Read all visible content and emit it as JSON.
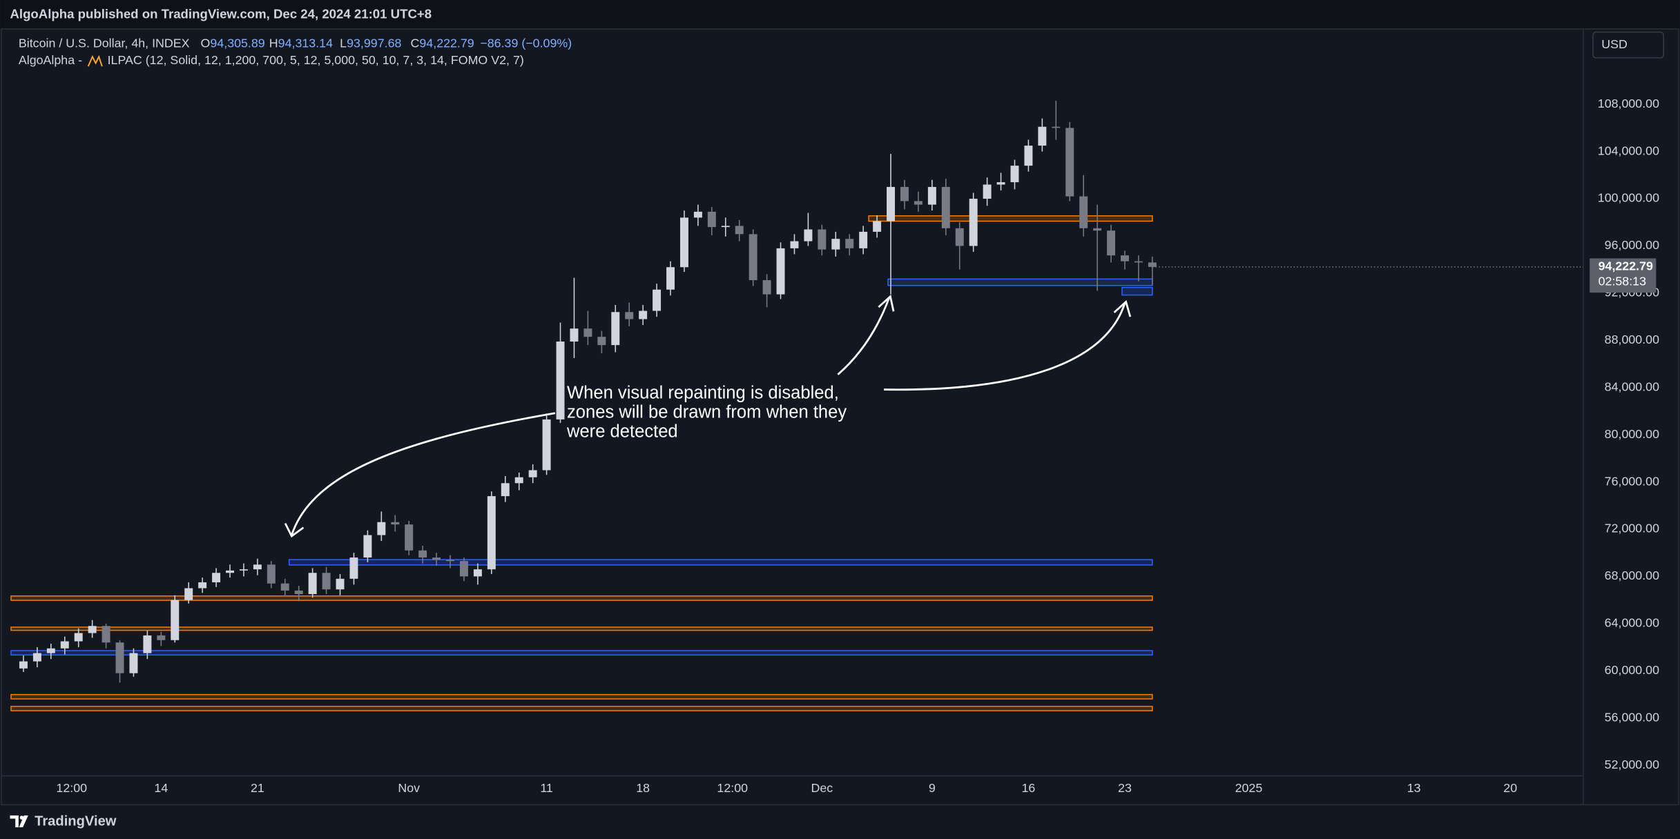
{
  "page": {
    "publisher": "AlgoAlpha published on TradingView.com, Dec 24, 2024 21:01 UTC+8",
    "symbol": "Bitcoin / U.S. Dollar, 4h, INDEX",
    "ohlc": [
      {
        "label": "O",
        "value": "94,305.89"
      },
      {
        "label": "H",
        "value": "94,313.14"
      },
      {
        "label": "L",
        "value": "93,997.68"
      },
      {
        "label": "C",
        "value": "94,222.79"
      }
    ],
    "change": "−86.39 (−0.09%)",
    "indicator_prefix": "AlgoAlpha -",
    "indicator": "ILPAC (12, Solid, 12, 1,200, 700, 5, 12, 5,000, 50, 10, 7, 3, 14, FOMO V2, 7)",
    "currency": "USD",
    "footer": "TradingView"
  },
  "chart_data": {
    "type": "candlestick",
    "x": [
      3,
      4,
      5,
      6,
      7,
      8,
      9,
      10,
      11,
      12,
      13,
      14,
      15,
      16,
      17,
      18,
      19,
      20,
      21,
      22,
      23,
      24,
      25,
      26,
      27,
      28,
      29,
      30,
      31,
      32,
      33,
      34,
      35,
      36,
      37,
      38,
      39,
      40,
      41,
      42,
      43,
      44,
      45,
      46,
      47,
      48,
      49,
      50,
      51,
      52,
      53,
      54,
      55,
      56,
      57,
      58,
      59,
      60,
      61,
      62,
      63,
      64,
      65,
      66,
      67,
      68,
      69,
      70,
      71,
      72,
      73,
      74,
      75,
      76,
      77,
      78,
      79,
      80,
      81,
      82,
      83,
      84,
      85
    ],
    "open": [
      60200,
      60800,
      61500,
      61900,
      62500,
      63200,
      63800,
      62400,
      59800,
      61500,
      63000,
      62600,
      66000,
      67000,
      67500,
      68300,
      68500,
      68600,
      69000,
      67400,
      66800,
      66500,
      68300,
      66900,
      67800,
      69600,
      71500,
      72600,
      72400,
      70200,
      69600,
      69400,
      69300,
      68000,
      68600,
      74800,
      75900,
      76400,
      77000,
      81300,
      87900,
      89000,
      88300,
      87600,
      90400,
      89800,
      90500,
      92300,
      94200,
      98400,
      98900,
      97600,
      97700,
      97000,
      93100,
      91900,
      95800,
      96400,
      97400,
      95700,
      96600,
      95800,
      97200,
      98100,
      101000,
      99800,
      99500,
      101000,
      97500,
      96000,
      100000,
      101200,
      101400,
      102800,
      104500,
      106100,
      106000,
      100200,
      97500,
      97300,
      95200,
      94700,
      94600
    ],
    "high": [
      61300,
      62000,
      62300,
      62900,
      63600,
      64300,
      64000,
      62600,
      61900,
      63400,
      63300,
      66400,
      67500,
      67900,
      68700,
      69000,
      69100,
      69500,
      69300,
      67800,
      67200,
      68700,
      68800,
      68200,
      70000,
      71900,
      73500,
      73200,
      72700,
      70600,
      70000,
      69800,
      69600,
      69100,
      75200,
      76500,
      76800,
      77500,
      81800,
      89500,
      93300,
      90500,
      88800,
      91000,
      91200,
      91000,
      92800,
      94700,
      99000,
      99500,
      99300,
      98400,
      98200,
      97400,
      93600,
      96300,
      97000,
      98800,
      97800,
      97200,
      97000,
      97700,
      98600,
      103800,
      101600,
      100600,
      101600,
      101700,
      98000,
      100500,
      101800,
      102200,
      103300,
      105000,
      106800,
      108300,
      106500,
      102000,
      99500,
      97800,
      95600,
      95200,
      95100
    ],
    "low": [
      59900,
      60300,
      61000,
      61400,
      62000,
      62800,
      61900,
      59000,
      59500,
      61000,
      62100,
      62400,
      65700,
      66600,
      67100,
      67900,
      68000,
      68100,
      67000,
      66300,
      65900,
      66200,
      66500,
      66400,
      67300,
      69200,
      71000,
      71800,
      69800,
      69100,
      68900,
      68700,
      67600,
      67300,
      68200,
      74300,
      75300,
      75900,
      76600,
      81000,
      86500,
      87600,
      86900,
      87000,
      89200,
      89300,
      90000,
      91800,
      93800,
      97700,
      96900,
      96800,
      96400,
      92600,
      90800,
      91500,
      95300,
      96000,
      95200,
      95100,
      95200,
      95300,
      96700,
      91900,
      99100,
      98900,
      99000,
      96900,
      94000,
      95500,
      99400,
      100700,
      100800,
      102300,
      104000,
      105000,
      99800,
      96800,
      92200,
      94600,
      94000,
      93000,
      92700
    ],
    "close": [
      60800,
      61500,
      61900,
      62500,
      63200,
      63800,
      62400,
      59800,
      61500,
      63000,
      62600,
      66000,
      67000,
      67500,
      68300,
      68500,
      68600,
      69000,
      67400,
      66800,
      66500,
      68300,
      66900,
      67800,
      69600,
      71500,
      72600,
      72400,
      70200,
      69600,
      69400,
      69300,
      68000,
      68600,
      74800,
      75900,
      76400,
      77000,
      81300,
      87900,
      89000,
      88300,
      87600,
      90400,
      89800,
      90500,
      92300,
      94200,
      98400,
      98900,
      97600,
      97700,
      97000,
      93100,
      91900,
      95800,
      96400,
      97400,
      95700,
      96600,
      95800,
      97200,
      98100,
      101000,
      99800,
      99500,
      101000,
      97500,
      96000,
      100000,
      101200,
      101400,
      102800,
      104500,
      106100,
      106000,
      100200,
      97500,
      97300,
      95200,
      94700,
      94600,
      94222.79
    ],
    "up_color": "#d1d4dc",
    "down_color": "#787b86",
    "xlim": [
      2.1,
      116.3
    ],
    "ylim": [
      51100,
      114300
    ],
    "grid": false,
    "xticks": [
      {
        "value": 6.5,
        "label": "12:00"
      },
      {
        "value": 13,
        "label": "14"
      },
      {
        "value": 20,
        "label": "21"
      },
      {
        "value": 31,
        "label": "Nov"
      },
      {
        "value": 41,
        "label": "11"
      },
      {
        "value": 48,
        "label": "18"
      },
      {
        "value": 54.5,
        "label": "12:00"
      },
      {
        "value": 61,
        "label": "Dec"
      },
      {
        "value": 69,
        "label": "9"
      },
      {
        "value": 76,
        "label": "16"
      },
      {
        "value": 83,
        "label": "23"
      },
      {
        "value": 92,
        "label": "2025"
      },
      {
        "value": 104,
        "label": "13"
      },
      {
        "value": 111,
        "label": "20"
      }
    ],
    "yticks": [
      {
        "value": 52000,
        "label": "52,000.00"
      },
      {
        "value": 56000,
        "label": "56,000.00"
      },
      {
        "value": 60000,
        "label": "60,000.00"
      },
      {
        "value": 64000,
        "label": "64,000.00"
      },
      {
        "value": 68000,
        "label": "68,000.00"
      },
      {
        "value": 72000,
        "label": "72,000.00"
      },
      {
        "value": 76000,
        "label": "76,000.00"
      },
      {
        "value": 80000,
        "label": "80,000.00"
      },
      {
        "value": 84000,
        "label": "84,000.00"
      },
      {
        "value": 88000,
        "label": "88,000.00"
      },
      {
        "value": 92000,
        "label": "92,000.00"
      },
      {
        "value": 96000,
        "label": "96,000.00"
      },
      {
        "value": 100000,
        "label": "100,000.00"
      },
      {
        "value": 104000,
        "label": "104,000.00"
      },
      {
        "value": 108000,
        "label": "108,000.00"
      }
    ],
    "zones": [
      {
        "color": "#f57c00",
        "x": [
          64.4,
          85
        ],
        "y": [
          98100,
          98550
        ]
      },
      {
        "color": "#2962ff",
        "x": [
          65.8,
          85
        ],
        "y": [
          92650,
          93200
        ]
      },
      {
        "color": "#2962ff",
        "x": [
          82.8,
          85
        ],
        "y": [
          91840,
          92480
        ]
      },
      {
        "color": "#2962ff",
        "x": [
          22.3,
          85
        ],
        "y": [
          68970,
          69420
        ]
      },
      {
        "color": "#f57c00",
        "x": [
          2.1,
          85
        ],
        "y": [
          65975,
          66340
        ]
      },
      {
        "color": "#f57c00",
        "x": [
          2.1,
          85
        ],
        "y": [
          63430,
          63700
        ]
      },
      {
        "color": "#2962ff",
        "x": [
          2.1,
          85
        ],
        "y": [
          61345,
          61710
        ]
      },
      {
        "color": "#f57c00",
        "x": [
          2.1,
          85
        ],
        "y": [
          57620,
          57990
        ]
      },
      {
        "color": "#f57c00",
        "x": [
          2.1,
          85
        ],
        "y": [
          56620,
          56990
        ]
      }
    ],
    "last_price": {
      "value": 94222.79,
      "label": "94,222.79",
      "countdown": "02:58:13"
    },
    "annotation": [
      "When visual repainting is disabled,",
      "zones will be drawn from when they",
      "were detected"
    ]
  }
}
